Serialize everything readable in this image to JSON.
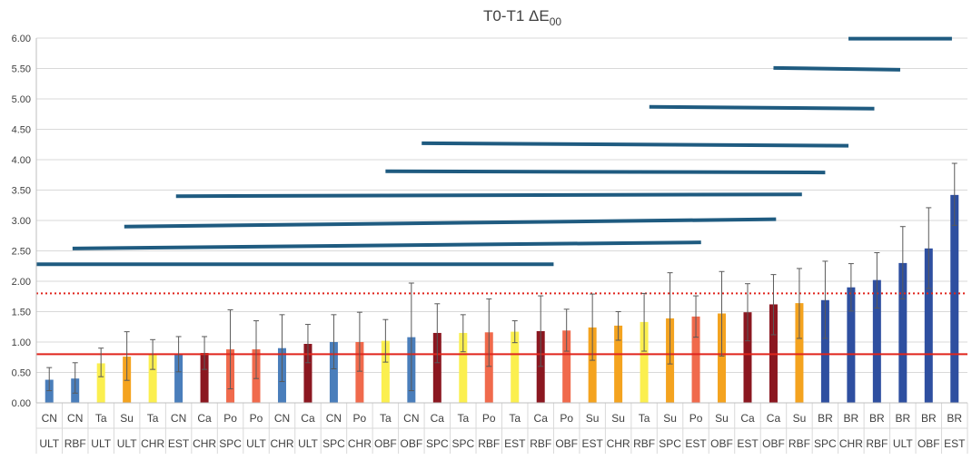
{
  "chart_data": {
    "type": "bar",
    "title": "T0-T1 ΔE",
    "title_subscript": "00",
    "xlabel": "",
    "ylabel": "",
    "ylim": [
      0,
      6
    ],
    "yticks": [
      "0.00",
      "0.50",
      "1.00",
      "1.50",
      "2.00",
      "2.50",
      "3.00",
      "3.50",
      "4.00",
      "4.50",
      "5.00",
      "5.50",
      "6.00"
    ],
    "grid": true,
    "legend": "none",
    "categories": [
      {
        "top": "CN",
        "bottom": "ULT"
      },
      {
        "top": "CN",
        "bottom": "RBF"
      },
      {
        "top": "Ta",
        "bottom": "ULT"
      },
      {
        "top": "Su",
        "bottom": "ULT"
      },
      {
        "top": "Ta",
        "bottom": "CHR"
      },
      {
        "top": "CN",
        "bottom": "EST"
      },
      {
        "top": "Ca",
        "bottom": "CHR"
      },
      {
        "top": "Po",
        "bottom": "SPC"
      },
      {
        "top": "Po",
        "bottom": "ULT"
      },
      {
        "top": "CN",
        "bottom": "CHR"
      },
      {
        "top": "Ca",
        "bottom": "ULT"
      },
      {
        "top": "CN",
        "bottom": "SPC"
      },
      {
        "top": "Po",
        "bottom": "CHR"
      },
      {
        "top": "Ta",
        "bottom": "OBF"
      },
      {
        "top": "CN",
        "bottom": "OBF"
      },
      {
        "top": "Ca",
        "bottom": "SPC"
      },
      {
        "top": "Ta",
        "bottom": "SPC"
      },
      {
        "top": "Po",
        "bottom": "RBF"
      },
      {
        "top": "Ta",
        "bottom": "EST"
      },
      {
        "top": "Ca",
        "bottom": "RBF"
      },
      {
        "top": "Po",
        "bottom": "OBF"
      },
      {
        "top": "Su",
        "bottom": "EST"
      },
      {
        "top": "Su",
        "bottom": "CHR"
      },
      {
        "top": "Ta",
        "bottom": "RBF"
      },
      {
        "top": "Su",
        "bottom": "SPC"
      },
      {
        "top": "Po",
        "bottom": "EST"
      },
      {
        "top": "Su",
        "bottom": "OBF"
      },
      {
        "top": "Ca",
        "bottom": "EST"
      },
      {
        "top": "Ca",
        "bottom": "OBF"
      },
      {
        "top": "Su",
        "bottom": "RBF"
      },
      {
        "top": "BR",
        "bottom": "SPC"
      },
      {
        "top": "BR",
        "bottom": "CHR"
      },
      {
        "top": "BR",
        "bottom": "RBF"
      },
      {
        "top": "BR",
        "bottom": "ULT"
      },
      {
        "top": "BR",
        "bottom": "OBF"
      },
      {
        "top": "BR",
        "bottom": "EST"
      }
    ],
    "values": [
      0.38,
      0.4,
      0.65,
      0.76,
      0.79,
      0.79,
      0.82,
      0.88,
      0.88,
      0.9,
      0.97,
      1.0,
      1.0,
      1.02,
      1.08,
      1.15,
      1.15,
      1.16,
      1.17,
      1.18,
      1.19,
      1.24,
      1.27,
      1.33,
      1.39,
      1.42,
      1.47,
      1.49,
      1.62,
      1.64,
      1.69,
      1.9,
      2.02,
      2.3,
      2.54,
      3.42
    ],
    "error_low": [
      0.2,
      0.16,
      0.43,
      0.37,
      0.55,
      0.51,
      0.55,
      0.23,
      0.4,
      0.35,
      0.66,
      0.56,
      0.52,
      0.67,
      0.2,
      0.66,
      0.84,
      0.6,
      0.99,
      0.6,
      0.85,
      0.7,
      1.03,
      0.85,
      0.64,
      1.08,
      0.77,
      1.02,
      1.12,
      1.06,
      1.06,
      1.51,
      1.56,
      1.71,
      1.88,
      2.92
    ],
    "error_high": [
      0.58,
      0.66,
      0.9,
      1.17,
      1.04,
      1.09,
      1.09,
      1.53,
      1.35,
      1.45,
      1.29,
      1.45,
      1.49,
      1.37,
      1.97,
      1.63,
      1.45,
      1.71,
      1.35,
      1.76,
      1.54,
      1.79,
      1.5,
      1.8,
      2.14,
      1.76,
      2.16,
      1.96,
      2.11,
      2.21,
      2.33,
      2.29,
      2.47,
      2.9,
      3.21,
      3.94
    ],
    "bar_colors": [
      "#4a7ebb",
      "#4a7ebb",
      "#fbef4f",
      "#f4a31f",
      "#fbef4f",
      "#4a7ebb",
      "#8b1720",
      "#f06a4c",
      "#f06a4c",
      "#4a7ebb",
      "#8b1720",
      "#4a7ebb",
      "#f06a4c",
      "#fbef4f",
      "#4a7ebb",
      "#8b1720",
      "#fbef4f",
      "#f06a4c",
      "#fbef4f",
      "#8b1720",
      "#f06a4c",
      "#f4a31f",
      "#f4a31f",
      "#fbef4f",
      "#f4a31f",
      "#f06a4c",
      "#f4a31f",
      "#8b1720",
      "#8b1720",
      "#f4a31f",
      "#2e4fa0",
      "#2e4fa0",
      "#2e4fa0",
      "#2e4fa0",
      "#2e4fa0",
      "#2e4fa0"
    ],
    "reference_lines": [
      {
        "value": 0.8,
        "style": "solid",
        "color": "#e0251c"
      },
      {
        "value": 1.8,
        "style": "dotted",
        "color": "#e0251c"
      }
    ],
    "group_lines": [
      {
        "from": -0.5,
        "to": 19.5,
        "y_start": 2.28,
        "y_end": 2.28
      },
      {
        "from": 0.9,
        "to": 25.2,
        "y_start": 2.54,
        "y_end": 2.64
      },
      {
        "from": 2.9,
        "to": 28.1,
        "y_start": 2.9,
        "y_end": 3.02
      },
      {
        "from": 4.9,
        "to": 29.1,
        "y_start": 3.4,
        "y_end": 3.43
      },
      {
        "from": 13.0,
        "to": 30.0,
        "y_start": 3.81,
        "y_end": 3.79
      },
      {
        "from": 14.4,
        "to": 30.9,
        "y_start": 4.27,
        "y_end": 4.23
      },
      {
        "from": 23.2,
        "to": 31.9,
        "y_start": 4.87,
        "y_end": 4.84
      },
      {
        "from": 28.0,
        "to": 32.9,
        "y_start": 5.51,
        "y_end": 5.48
      },
      {
        "from": 30.9,
        "to": 34.9,
        "y_start": 5.99,
        "y_end": 5.99
      }
    ],
    "colors": {
      "group_line": "#1f5b80",
      "grid": "#d9d9d9",
      "axis": "#bfbfbf",
      "error_bar": "#595959"
    }
  }
}
